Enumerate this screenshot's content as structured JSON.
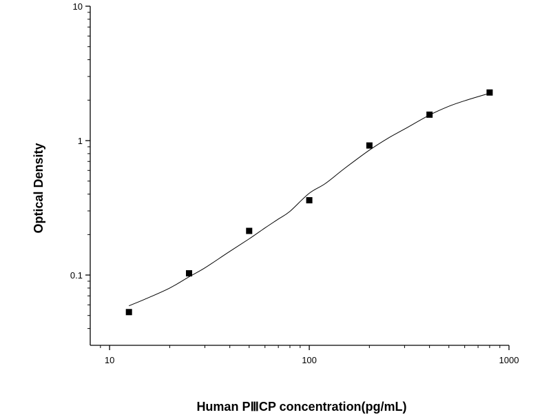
{
  "chart_data": {
    "type": "scatter",
    "xlabel": "Human PⅢCP concentration(pg/mL)",
    "ylabel": "Optical Density",
    "x_scale": "log",
    "y_scale": "log",
    "xlim": [
      8,
      1000
    ],
    "ylim": [
      0.03,
      10
    ],
    "x_ticks": [
      10,
      100,
      1000
    ],
    "x_tick_labels": [
      "10",
      "100",
      "1000"
    ],
    "y_ticks": [
      0.1,
      1,
      10
    ],
    "y_tick_labels": [
      "0.1",
      "1",
      "10"
    ],
    "grid": false,
    "series": [
      {
        "kind": "points",
        "marker": "square",
        "color": "#000000",
        "x": [
          12.5,
          25,
          50,
          100,
          200,
          400,
          800
        ],
        "y": [
          0.053,
          0.103,
          0.213,
          0.36,
          0.92,
          1.56,
          2.28
        ]
      },
      {
        "kind": "fit-curve",
        "color": "#000000",
        "x": [
          12.5,
          15,
          20,
          25,
          30,
          40,
          50,
          60,
          70,
          80,
          100,
          120,
          150,
          200,
          250,
          300,
          400,
          500,
          600,
          800
        ],
        "y": [
          0.059,
          0.066,
          0.08,
          0.097,
          0.113,
          0.15,
          0.186,
          0.224,
          0.261,
          0.298,
          0.406,
          0.478,
          0.62,
          0.85,
          1.05,
          1.22,
          1.55,
          1.8,
          1.98,
          2.25
        ]
      }
    ]
  }
}
